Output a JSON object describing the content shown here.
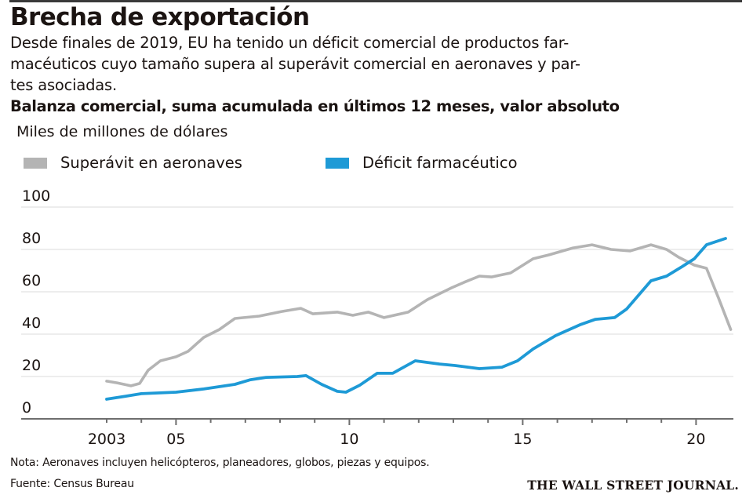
{
  "header": {
    "title": "Brecha de exportación",
    "subtitle": "Desde finales de 2019, EU ha tenido un déficit comercial de productos far- macéuticos cuyo tamaño supera al superávit comercial en aeronaves y par- tes asociadas.",
    "subtitle_lines": [
      "Desde finales de 2019, EU ha tenido un déficit comercial de productos far-",
      "macéuticos cuyo tamaño supera al superávit comercial en aeronaves y par-",
      "tes asociadas."
    ]
  },
  "footer": {
    "note": "Nota: Aeronaves incluyen helicópteros, planeadores, globos, piezas y equipos.",
    "source": "Fuente: Census Bureau",
    "logo": "THE WALL STREET JOURNAL."
  },
  "colors": {
    "aircraft": "#b4b4b4",
    "pharma": "#1e9ad6",
    "grid": "#e2e2e2",
    "axis": "#6e6e6e"
  },
  "chart_data": {
    "type": "line",
    "title": "Balanza comercial, suma acumulada en últimos 12 meses, valor absoluto",
    "ylabel": "Miles de millones de dólares",
    "xlabel": "",
    "ylim": [
      0,
      100
    ],
    "xlim": [
      2000.5,
      2021.05
    ],
    "grid": true,
    "legend_position": "top-left",
    "yticks": [
      0,
      20,
      40,
      60,
      80,
      100
    ],
    "ytick_labels": [
      "0",
      "20",
      "40",
      "60",
      "80",
      "100"
    ],
    "xticks_labeled": [
      2003,
      2005,
      2010,
      2015,
      2020
    ],
    "xtick_labels": [
      "2003",
      "05",
      "10",
      "15",
      "20"
    ],
    "xticks_minor": [
      2004,
      2006,
      2007,
      2008,
      2009,
      2011,
      2012,
      2013,
      2014,
      2016,
      2017,
      2018,
      2019
    ],
    "series": [
      {
        "name": "Superávit en aeronaves",
        "color": "#b4b4b4",
        "x": [
          2003.0,
          2003.3,
          2003.7,
          2003.95,
          2004.2,
          2004.55,
          2005.0,
          2005.35,
          2005.8,
          2006.25,
          2006.7,
          2007.4,
          2008.05,
          2008.6,
          2008.95,
          2009.65,
          2010.1,
          2010.55,
          2011.0,
          2011.7,
          2012.25,
          2012.95,
          2013.3,
          2013.75,
          2014.1,
          2014.65,
          2015.3,
          2015.75,
          2016.45,
          2017.0,
          2017.55,
          2018.1,
          2018.7,
          2019.15,
          2019.5,
          2019.95,
          2020.3,
          2020.65,
          2021.0
        ],
        "values": [
          17.8,
          17.0,
          15.6,
          16.7,
          23.0,
          27.4,
          29.3,
          31.9,
          38.5,
          42.2,
          47.4,
          48.5,
          50.7,
          52.2,
          49.6,
          50.4,
          48.9,
          50.4,
          47.8,
          50.4,
          56.3,
          61.9,
          64.4,
          67.4,
          67.0,
          68.9,
          75.6,
          77.4,
          80.7,
          82.2,
          80.0,
          79.3,
          82.2,
          80.0,
          76.3,
          72.6,
          71.1,
          57.0,
          42.2
        ]
      },
      {
        "name": "Déficit farmacéutico",
        "color": "#1e9ad6",
        "x": [
          2003.0,
          2003.55,
          2004.0,
          2005.0,
          2005.8,
          2006.7,
          2007.15,
          2007.6,
          2008.5,
          2008.75,
          2009.2,
          2009.65,
          2009.9,
          2010.3,
          2010.8,
          2011.25,
          2011.9,
          2012.6,
          2013.05,
          2013.75,
          2014.4,
          2014.85,
          2015.3,
          2015.95,
          2016.65,
          2017.1,
          2017.65,
          2018.0,
          2018.7,
          2019.15,
          2019.6,
          2019.95,
          2020.3,
          2020.85
        ],
        "values": [
          9.3,
          10.7,
          11.9,
          12.6,
          14.1,
          16.3,
          18.5,
          19.6,
          20.0,
          20.4,
          16.3,
          13.0,
          12.6,
          15.9,
          21.5,
          21.5,
          27.4,
          25.9,
          25.2,
          23.7,
          24.4,
          27.4,
          33.0,
          39.3,
          44.4,
          47.0,
          47.8,
          51.9,
          65.2,
          67.4,
          71.9,
          75.6,
          82.2,
          85.2
        ]
      }
    ]
  }
}
